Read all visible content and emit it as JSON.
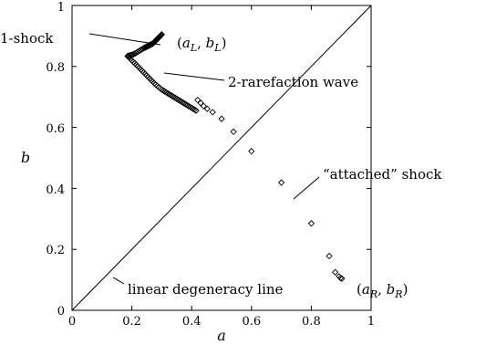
{
  "chart_data": {
    "type": "scatter",
    "xlabel": "a",
    "ylabel": "b",
    "xlim": [
      0,
      1
    ],
    "ylim": [
      0,
      1
    ],
    "x_ticks": [
      "0",
      "0.2",
      "0.4",
      "0.6",
      "0.8",
      "1"
    ],
    "y_ticks": [
      "0",
      "0.2",
      "0.4",
      "0.6",
      "0.8",
      "1"
    ],
    "grid": false,
    "legend": "none",
    "reference_line": {
      "from": [
        0,
        0
      ],
      "to": [
        1,
        1
      ]
    },
    "series": [
      {
        "marker": "diamond",
        "points": [
          [
            0.3,
            0.905
          ],
          [
            0.298,
            0.903
          ],
          [
            0.296,
            0.901
          ],
          [
            0.294,
            0.899
          ],
          [
            0.292,
            0.897
          ],
          [
            0.29,
            0.895
          ],
          [
            0.288,
            0.893
          ],
          [
            0.286,
            0.891
          ],
          [
            0.284,
            0.889
          ],
          [
            0.282,
            0.887
          ],
          [
            0.28,
            0.885
          ],
          [
            0.278,
            0.883
          ],
          [
            0.276,
            0.881
          ],
          [
            0.274,
            0.879
          ],
          [
            0.272,
            0.877
          ],
          [
            0.27,
            0.875
          ],
          [
            0.268,
            0.874
          ],
          [
            0.266,
            0.873
          ],
          [
            0.264,
            0.872
          ],
          [
            0.262,
            0.871
          ],
          [
            0.26,
            0.87
          ],
          [
            0.258,
            0.869
          ],
          [
            0.256,
            0.868
          ],
          [
            0.254,
            0.867
          ],
          [
            0.252,
            0.866
          ],
          [
            0.25,
            0.865
          ],
          [
            0.248,
            0.864
          ],
          [
            0.246,
            0.863
          ],
          [
            0.244,
            0.862
          ],
          [
            0.242,
            0.861
          ],
          [
            0.24,
            0.86
          ],
          [
            0.235,
            0.857
          ],
          [
            0.23,
            0.854
          ],
          [
            0.225,
            0.851
          ],
          [
            0.22,
            0.848
          ],
          [
            0.215,
            0.845
          ],
          [
            0.21,
            0.842
          ],
          [
            0.205,
            0.84
          ],
          [
            0.2,
            0.838
          ],
          [
            0.196,
            0.837
          ],
          [
            0.192,
            0.836
          ],
          [
            0.188,
            0.835
          ],
          [
            0.186,
            0.834
          ],
          [
            0.188,
            0.832
          ],
          [
            0.192,
            0.828
          ],
          [
            0.196,
            0.824
          ],
          [
            0.2,
            0.82
          ],
          [
            0.205,
            0.815
          ],
          [
            0.21,
            0.81
          ],
          [
            0.215,
            0.805
          ],
          [
            0.22,
            0.8
          ],
          [
            0.225,
            0.795
          ],
          [
            0.23,
            0.79
          ],
          [
            0.235,
            0.785
          ],
          [
            0.24,
            0.78
          ],
          [
            0.245,
            0.775
          ],
          [
            0.25,
            0.77
          ],
          [
            0.255,
            0.765
          ],
          [
            0.26,
            0.76
          ],
          [
            0.265,
            0.755
          ],
          [
            0.27,
            0.75
          ],
          [
            0.275,
            0.745
          ],
          [
            0.28,
            0.74
          ],
          [
            0.285,
            0.736
          ],
          [
            0.29,
            0.732
          ],
          [
            0.295,
            0.728
          ],
          [
            0.3,
            0.724
          ],
          [
            0.305,
            0.721
          ],
          [
            0.31,
            0.718
          ],
          [
            0.315,
            0.715
          ],
          [
            0.32,
            0.712
          ],
          [
            0.325,
            0.709
          ],
          [
            0.33,
            0.706
          ],
          [
            0.335,
            0.703
          ],
          [
            0.34,
            0.7
          ],
          [
            0.345,
            0.697
          ],
          [
            0.35,
            0.694
          ],
          [
            0.355,
            0.691
          ],
          [
            0.36,
            0.688
          ],
          [
            0.365,
            0.685
          ],
          [
            0.37,
            0.682
          ],
          [
            0.375,
            0.679
          ],
          [
            0.38,
            0.676
          ],
          [
            0.385,
            0.673
          ],
          [
            0.39,
            0.67
          ],
          [
            0.395,
            0.667
          ],
          [
            0.4,
            0.664
          ],
          [
            0.405,
            0.661
          ],
          [
            0.41,
            0.658
          ],
          [
            0.415,
            0.655
          ],
          [
            0.42,
            0.69
          ],
          [
            0.43,
            0.68
          ],
          [
            0.44,
            0.67
          ],
          [
            0.452,
            0.661
          ],
          [
            0.47,
            0.65
          ],
          [
            0.5,
            0.628
          ],
          [
            0.54,
            0.586
          ],
          [
            0.6,
            0.522
          ],
          [
            0.7,
            0.419
          ],
          [
            0.8,
            0.285
          ],
          [
            0.86,
            0.178
          ],
          [
            0.88,
            0.125
          ],
          [
            0.893,
            0.111
          ],
          [
            0.898,
            0.106
          ],
          [
            0.902,
            0.104
          ]
        ]
      }
    ],
    "annotations": {
      "one_shock": "1-shock",
      "left_state_a": "a",
      "left_state_sub": "L",
      "left_state_b": "b",
      "two_rarefaction": "2-rarefaction wave",
      "attached_shock": "“attached” shock",
      "linear_line": "linear degeneracy line",
      "right_state_a": "a",
      "right_state_sub": "R",
      "right_state_b": "b"
    }
  }
}
